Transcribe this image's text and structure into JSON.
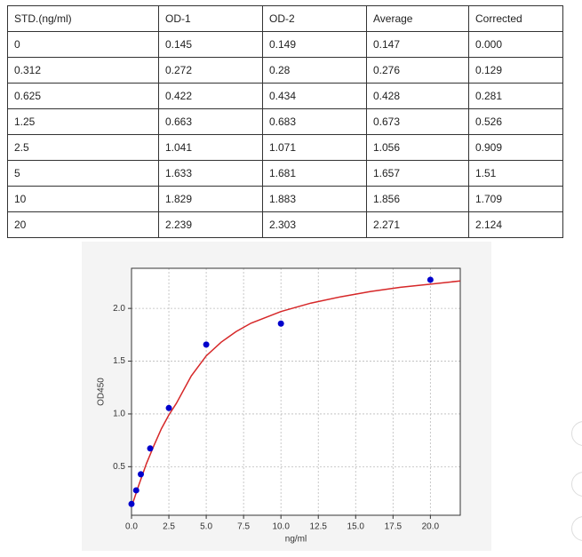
{
  "table": {
    "header": [
      "STD.(ng/ml)",
      "OD-1",
      "OD-2",
      "Average",
      "Corrected"
    ],
    "rows": [
      [
        "0",
        "0.145",
        "0.149",
        "0.147",
        "0.000"
      ],
      [
        "0.312",
        "0.272",
        "0.28",
        "0.276",
        "0.129"
      ],
      [
        "0.625",
        "0.422",
        "0.434",
        "0.428",
        "0.281"
      ],
      [
        "1.25",
        "0.663",
        "0.683",
        "0.673",
        "0.526"
      ],
      [
        "2.5",
        "1.041",
        "1.071",
        "1.056",
        "0.909"
      ],
      [
        "5",
        "1.633",
        "1.681",
        "1.657",
        "1.51"
      ],
      [
        "10",
        "1.829",
        "1.883",
        "1.856",
        "1.709"
      ],
      [
        "20",
        "2.239",
        "2.303",
        "2.271",
        "2.124"
      ]
    ]
  },
  "chart_data": {
    "type": "scatter",
    "x_label": "ng/ml",
    "y_label": "OD450",
    "x": [
      0,
      0.312,
      0.625,
      1.25,
      2.5,
      5,
      10,
      20
    ],
    "values": [
      0.147,
      0.276,
      0.428,
      0.673,
      1.056,
      1.657,
      1.856,
      2.271
    ],
    "color": "#0000cc",
    "curve": {
      "color": "#d62728",
      "x": [
        0,
        0.5,
        1,
        1.5,
        2,
        2.5,
        3,
        4,
        5,
        6,
        7,
        8,
        10,
        12,
        14,
        16,
        18,
        20,
        22
      ],
      "values": [
        0.12,
        0.33,
        0.53,
        0.7,
        0.86,
        0.99,
        1.1,
        1.36,
        1.55,
        1.68,
        1.78,
        1.86,
        1.97,
        2.05,
        2.11,
        2.16,
        2.2,
        2.23,
        2.26
      ]
    },
    "xlim": [
      0,
      22
    ],
    "ylim": [
      0.04,
      2.38
    ],
    "xticks": [
      {
        "value": 0,
        "label": "0.0"
      },
      {
        "value": 2.5,
        "label": "2.5"
      },
      {
        "value": 5,
        "label": "5.0"
      },
      {
        "value": 7.5,
        "label": "7.5"
      },
      {
        "value": 10,
        "label": "10.0"
      },
      {
        "value": 12.5,
        "label": "12.5"
      },
      {
        "value": 15,
        "label": "15.0"
      },
      {
        "value": 17.5,
        "label": "17.5"
      },
      {
        "value": 20,
        "label": "20.0"
      }
    ],
    "yticks": [
      {
        "value": 0.5,
        "label": "0.5"
      },
      {
        "value": 1,
        "label": "1.0"
      },
      {
        "value": 1.5,
        "label": "1.5"
      },
      {
        "value": 2,
        "label": "2.0"
      }
    ],
    "grid": true
  }
}
